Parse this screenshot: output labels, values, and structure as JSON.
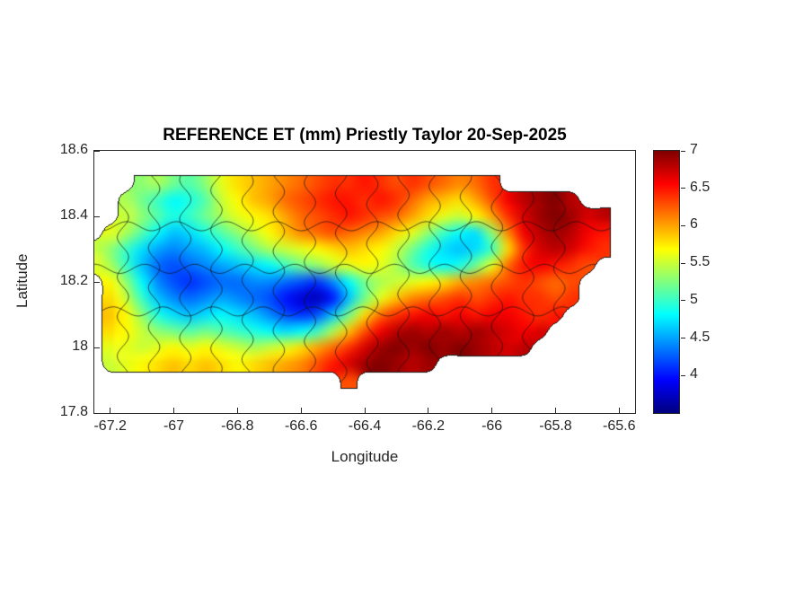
{
  "figure": {
    "background": "#ffffff",
    "axis_color": "#262626",
    "title_color": "#000000"
  },
  "chart_data": {
    "type": "heatmap",
    "title": "REFERENCE ET (mm) Priestly Taylor 20-Sep-2025",
    "xlabel": "Longitude",
    "ylabel": "Latitude",
    "region": "Puerto Rico",
    "xlim": [
      -67.25,
      -65.55
    ],
    "ylim": [
      17.8,
      18.6
    ],
    "xticks": [
      -67.2,
      -67,
      -66.8,
      -66.6,
      -66.4,
      -66.2,
      -66,
      -65.8,
      -65.6
    ],
    "xtick_labels": [
      "-67.2",
      "-67",
      "-66.8",
      "-66.6",
      "-66.4",
      "-66.2",
      "-66",
      "-65.8",
      "-65.6"
    ],
    "yticks": [
      17.8,
      18,
      18.2,
      18.4,
      18.6
    ],
    "ytick_labels": [
      "17.8",
      "18",
      "18.2",
      "18.4",
      "18.6"
    ],
    "colormap": "jet",
    "clim": [
      3.5,
      7
    ],
    "colorbar": {
      "ticks": [
        4,
        4.5,
        5,
        5.5,
        6,
        6.5,
        7
      ],
      "tick_labels": [
        "4",
        "4.5",
        "5",
        "5.5",
        "6",
        "6.5",
        "7"
      ]
    },
    "municipal_boundaries": true,
    "grid": {
      "lon_start": -67.25,
      "lon_step": 0.05,
      "lat_start": 18.5,
      "lat_step": -0.05,
      "values": [
        [
          null,
          null,
          null,
          5.3,
          5.4,
          5.2,
          5.1,
          5.3,
          5.6,
          5.8,
          5.9,
          6,
          6.1,
          6.2,
          6.3,
          6.4,
          6.4,
          6.5,
          6.4,
          6.3,
          6.4,
          6.3,
          6.2,
          6.1,
          6.2,
          6.4,
          null,
          null,
          null,
          null,
          null,
          null,
          null
        ],
        [
          null,
          null,
          5.4,
          5.2,
          5,
          4.8,
          4.9,
          5.1,
          5.5,
          5.7,
          5.9,
          6,
          6.2,
          6.3,
          6.4,
          6.5,
          6.5,
          6.4,
          6.5,
          6.4,
          6.2,
          6,
          5.9,
          5.8,
          6,
          6.3,
          6.6,
          6.8,
          6.9,
          7,
          6.8,
          null,
          null
        ],
        [
          null,
          null,
          5.5,
          5.3,
          5.1,
          4.9,
          5,
          5.2,
          5.4,
          5.6,
          5.7,
          5.8,
          6,
          6.2,
          6.3,
          6.4,
          6.5,
          6.4,
          6.3,
          6.2,
          6,
          5.8,
          5.6,
          5.5,
          5.7,
          6,
          6.4,
          6.7,
          6.9,
          7,
          6.9,
          6.7,
          6.8
        ],
        [
          null,
          5.6,
          5.4,
          5.1,
          4.8,
          4.6,
          4.7,
          4.9,
          5.1,
          5.3,
          5.5,
          5.7,
          5.9,
          6.1,
          6.2,
          6.3,
          6.2,
          6.1,
          6,
          5.8,
          5.6,
          5.3,
          5,
          4.8,
          4.7,
          5.3,
          6.1,
          6.6,
          6.8,
          6.9,
          6.8,
          6.6,
          6.5
        ],
        [
          5.5,
          5.3,
          5,
          4.7,
          4.5,
          4.4,
          4.5,
          4.6,
          4.8,
          5,
          5.2,
          5.4,
          5.5,
          5.6,
          5.7,
          5.8,
          5.9,
          5.8,
          5.7,
          5.5,
          5.2,
          4.9,
          4.7,
          4.6,
          4.7,
          5,
          5.8,
          6.4,
          6.7,
          6.8,
          6.7,
          6.5,
          6.4
        ],
        [
          5.6,
          5.4,
          5,
          4.6,
          4.3,
          4.2,
          4.3,
          4.4,
          4.5,
          4.6,
          4.7,
          4.8,
          5,
          5.2,
          5.3,
          5.5,
          5.6,
          5.7,
          5.6,
          5.4,
          5.1,
          4.9,
          4.8,
          4.9,
          5.2,
          5.6,
          6.2,
          6.5,
          6.6,
          6.5,
          6.4,
          6.3,
          null
        ],
        [
          null,
          5.7,
          5.3,
          4.8,
          4.4,
          4.2,
          4.1,
          4.2,
          4.3,
          4.3,
          4.4,
          4.4,
          4.3,
          4.2,
          4.1,
          4.4,
          4.8,
          5.2,
          5.4,
          5.5,
          5.6,
          5.7,
          5.8,
          6,
          6.1,
          6.2,
          6.3,
          6.4,
          6.3,
          6.2,
          6.3,
          null,
          null
        ],
        [
          null,
          5.8,
          5.5,
          5,
          4.6,
          4.4,
          4.3,
          4.4,
          4.5,
          4.4,
          4.3,
          4.2,
          4,
          3.8,
          3.7,
          4,
          4.6,
          5.2,
          5.6,
          5.9,
          6.1,
          6.2,
          6.3,
          6.4,
          6.3,
          6.4,
          6.5,
          6.4,
          6.4,
          6.3,
          6.4,
          null,
          null
        ],
        [
          null,
          5.9,
          5.7,
          5.3,
          4.9,
          4.7,
          4.6,
          4.7,
          4.8,
          4.7,
          4.6,
          4.4,
          4.2,
          4.1,
          4.2,
          4.6,
          5.2,
          5.8,
          6.2,
          6.4,
          6.5,
          6.6,
          6.5,
          6.6,
          6.5,
          6.6,
          6.6,
          6.5,
          6.4,
          6.5,
          null,
          null,
          null
        ],
        [
          null,
          5.8,
          5.7,
          5.5,
          5.3,
          5.2,
          5.1,
          5.2,
          5.1,
          5,
          4.9,
          4.8,
          4.7,
          4.8,
          5,
          5.4,
          5.9,
          6.3,
          6.6,
          6.8,
          6.9,
          6.8,
          6.9,
          6.8,
          6.9,
          6.8,
          6.7,
          6.6,
          6.7,
          null,
          null,
          null,
          null
        ],
        [
          null,
          5.6,
          5.6,
          5.5,
          5.6,
          5.7,
          5.6,
          5.7,
          5.6,
          5.5,
          5.4,
          5.5,
          5.6,
          5.8,
          6,
          6.2,
          6.4,
          6.7,
          6.9,
          7,
          6.9,
          7,
          6.9,
          7,
          6.9,
          6.8,
          6.7,
          6.8,
          null,
          null,
          null,
          null,
          null
        ],
        [
          null,
          5.5,
          5.6,
          5.7,
          5.8,
          5.9,
          5.8,
          5.9,
          5.8,
          5.7,
          5.8,
          5.9,
          6,
          6.1,
          6.3,
          6.5,
          6.7,
          6.9,
          7,
          6.9,
          6.8,
          6.9,
          null,
          null,
          null,
          null,
          null,
          null,
          null,
          null,
          null,
          null,
          null
        ],
        [
          null,
          null,
          null,
          null,
          null,
          null,
          null,
          null,
          null,
          null,
          null,
          null,
          null,
          null,
          null,
          null,
          6.3,
          null,
          null,
          null,
          null,
          null,
          null,
          null,
          null,
          null,
          null,
          null,
          null,
          null,
          null,
          null,
          null
        ]
      ]
    }
  }
}
